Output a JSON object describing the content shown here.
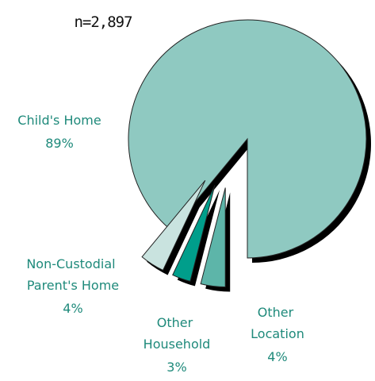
{
  "chart_data": {
    "type": "pie",
    "subtitle": "n=2,897",
    "categories": [
      "Child's Home",
      "Non-Custodial Parent's Home",
      "Other Household",
      "Other Location"
    ],
    "values": [
      89,
      4,
      3,
      4
    ],
    "value_labels": [
      "89%",
      "4%",
      "3%",
      "4%"
    ],
    "colors": [
      "#8fc9c1",
      "#c9e3df",
      "#009e8b",
      "#5db5a9"
    ]
  }
}
